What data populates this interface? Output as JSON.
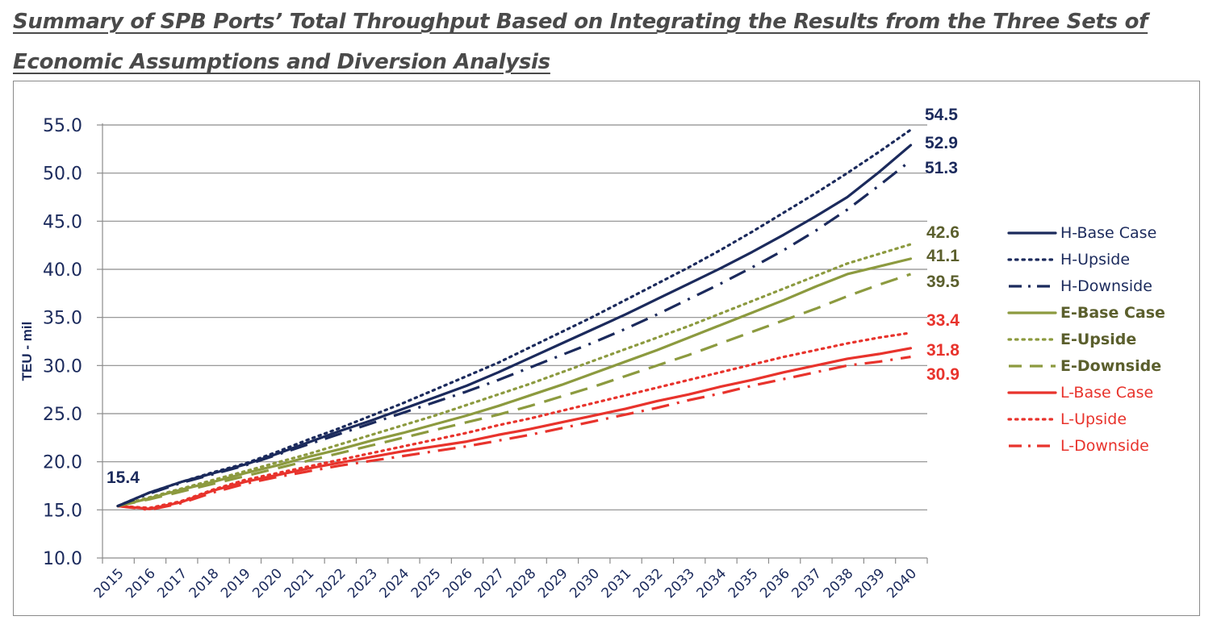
{
  "title_line1": "Summary of SPB Ports’ Total Throughput Based on Integrating the Results from the Three Sets of",
  "title_line2": "Economic Assumptions and Diversion Analysis",
  "colors": {
    "H": "#1b2a5c",
    "E": "#8c9a3f",
    "E_text": "#5b5f2d",
    "L": "#e8332c",
    "axis": "#1b2a5c",
    "grid": "#8c8c8c"
  },
  "chart_data": {
    "type": "line",
    "ylabel": "TEU - mil",
    "xlabel": "",
    "ylim": [
      10,
      55
    ],
    "yticks": [
      "10.0",
      "15.0",
      "20.0",
      "25.0",
      "30.0",
      "35.0",
      "40.0",
      "45.0",
      "50.0",
      "55.0"
    ],
    "grid": true,
    "legend_position": "right",
    "categories": [
      "2015",
      "2016",
      "2017",
      "2018",
      "2019",
      "2020",
      "2021",
      "2022",
      "2023",
      "2024",
      "2025",
      "2026",
      "2027",
      "2028",
      "2029",
      "2030",
      "2031",
      "2032",
      "2033",
      "2034",
      "2035",
      "2036",
      "2037",
      "2038",
      "2039",
      "2040"
    ],
    "start_label": "15.4",
    "series": [
      {
        "name": "H-Base Case",
        "group": "H",
        "style": "solid",
        "values": [
          15.4,
          16.8,
          17.9,
          18.8,
          19.7,
          20.8,
          22.0,
          23.2,
          24.3,
          25.5,
          26.7,
          27.9,
          29.3,
          30.8,
          32.3,
          33.8,
          35.3,
          36.9,
          38.5,
          40.1,
          41.8,
          43.6,
          45.5,
          47.5,
          50.1,
          52.9
        ],
        "end_label": "52.9"
      },
      {
        "name": "H-Upside",
        "group": "H",
        "style": "dotted",
        "values": [
          15.4,
          16.8,
          17.9,
          18.9,
          19.8,
          21.0,
          22.3,
          23.5,
          24.8,
          26.1,
          27.5,
          28.9,
          30.3,
          31.9,
          33.5,
          35.1,
          36.8,
          38.5,
          40.2,
          42.0,
          43.9,
          45.9,
          47.9,
          50.0,
          52.2,
          54.5
        ],
        "end_label": "54.5"
      },
      {
        "name": "H-Downside",
        "group": "H",
        "style": "dashdot",
        "values": [
          15.4,
          16.7,
          17.8,
          18.7,
          19.6,
          20.7,
          21.8,
          22.9,
          24.0,
          25.1,
          26.2,
          27.3,
          28.5,
          29.8,
          31.1,
          32.4,
          33.8,
          35.3,
          36.9,
          38.5,
          40.2,
          42.0,
          44.0,
          46.2,
          48.7,
          51.3
        ],
        "end_label": "51.3"
      },
      {
        "name": "E-Base Case",
        "group": "E",
        "style": "solid",
        "values": [
          15.4,
          16.2,
          17.1,
          17.9,
          18.8,
          19.6,
          20.5,
          21.3,
          22.2,
          23.0,
          23.9,
          24.8,
          25.8,
          26.9,
          28.0,
          29.2,
          30.4,
          31.6,
          32.9,
          34.2,
          35.5,
          36.8,
          38.2,
          39.5,
          40.3,
          41.1
        ],
        "end_label": "41.1"
      },
      {
        "name": "E-Upside",
        "group": "E",
        "style": "dotted",
        "values": [
          15.4,
          16.3,
          17.2,
          18.1,
          19.0,
          19.9,
          20.8,
          21.8,
          22.8,
          23.8,
          24.8,
          25.9,
          27.0,
          28.1,
          29.3,
          30.5,
          31.7,
          32.9,
          34.1,
          35.4,
          36.7,
          38.0,
          39.3,
          40.6,
          41.6,
          42.6
        ],
        "end_label": "42.6"
      },
      {
        "name": "E-Downside",
        "group": "E",
        "style": "dashed",
        "values": [
          15.4,
          16.1,
          16.9,
          17.7,
          18.5,
          19.3,
          20.1,
          20.9,
          21.7,
          22.5,
          23.3,
          24.1,
          24.9,
          25.8,
          26.8,
          27.8,
          28.9,
          30.0,
          31.1,
          32.3,
          33.5,
          34.7,
          35.9,
          37.2,
          38.4,
          39.5
        ],
        "end_label": "39.5"
      },
      {
        "name": "L-Base Case",
        "group": "L",
        "style": "solid",
        "values": [
          15.4,
          15.1,
          15.8,
          17.0,
          17.9,
          18.6,
          19.3,
          19.9,
          20.5,
          21.1,
          21.6,
          22.1,
          22.8,
          23.4,
          24.1,
          24.8,
          25.5,
          26.3,
          27.0,
          27.8,
          28.5,
          29.3,
          30.0,
          30.7,
          31.2,
          31.8
        ],
        "end_label": "31.8"
      },
      {
        "name": "L-Upside",
        "group": "L",
        "style": "dotted",
        "values": [
          15.4,
          15.2,
          15.9,
          17.1,
          18.1,
          18.8,
          19.5,
          20.2,
          20.9,
          21.6,
          22.3,
          23.0,
          23.8,
          24.5,
          25.3,
          26.1,
          26.9,
          27.7,
          28.5,
          29.3,
          30.1,
          30.9,
          31.6,
          32.3,
          32.9,
          33.4
        ],
        "end_label": "33.4"
      },
      {
        "name": "L-Downside",
        "group": "L",
        "style": "dashdot",
        "values": [
          15.4,
          15.0,
          15.7,
          16.8,
          17.7,
          18.4,
          19.0,
          19.6,
          20.1,
          20.6,
          21.1,
          21.6,
          22.2,
          22.8,
          23.5,
          24.2,
          24.9,
          25.6,
          26.4,
          27.1,
          27.9,
          28.6,
          29.3,
          30.0,
          30.4,
          30.9
        ],
        "end_label": "30.9"
      }
    ]
  }
}
